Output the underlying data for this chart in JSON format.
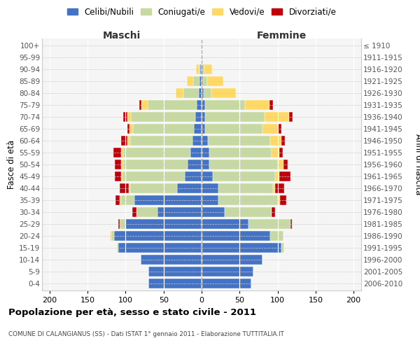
{
  "age_groups": [
    "0-4",
    "5-9",
    "10-14",
    "15-19",
    "20-24",
    "25-29",
    "30-34",
    "35-39",
    "40-44",
    "45-49",
    "50-54",
    "55-59",
    "60-64",
    "65-69",
    "70-74",
    "75-79",
    "80-84",
    "85-89",
    "90-94",
    "95-99",
    "100+"
  ],
  "birth_years": [
    "2006-2010",
    "2001-2005",
    "1996-2000",
    "1991-1995",
    "1986-1990",
    "1981-1985",
    "1976-1980",
    "1971-1975",
    "1966-1970",
    "1961-1965",
    "1956-1960",
    "1951-1955",
    "1946-1950",
    "1941-1945",
    "1936-1940",
    "1931-1935",
    "1926-1930",
    "1921-1925",
    "1916-1920",
    "1911-1915",
    "≤ 1910"
  ],
  "maschi": {
    "celibi": [
      70,
      70,
      80,
      110,
      115,
      100,
      58,
      88,
      32,
      22,
      18,
      15,
      12,
      10,
      8,
      6,
      4,
      3,
      2,
      0,
      1
    ],
    "coniugati": [
      0,
      0,
      0,
      1,
      4,
      8,
      28,
      18,
      62,
      82,
      85,
      88,
      82,
      80,
      85,
      65,
      20,
      8,
      2,
      0,
      0
    ],
    "vedovi": [
      0,
      0,
      0,
      0,
      2,
      0,
      0,
      2,
      2,
      2,
      3,
      3,
      4,
      5,
      5,
      8,
      10,
      8,
      3,
      0,
      0
    ],
    "divorziati": [
      0,
      0,
      0,
      0,
      0,
      2,
      5,
      5,
      12,
      8,
      8,
      10,
      8,
      3,
      5,
      3,
      0,
      0,
      0,
      0,
      0
    ]
  },
  "femmine": {
    "nubili": [
      65,
      68,
      80,
      105,
      90,
      62,
      30,
      22,
      22,
      15,
      10,
      10,
      8,
      5,
      5,
      5,
      3,
      2,
      2,
      0,
      0
    ],
    "coniugate": [
      0,
      0,
      0,
      4,
      18,
      55,
      62,
      78,
      72,
      82,
      90,
      82,
      82,
      75,
      78,
      52,
      10,
      5,
      2,
      0,
      0
    ],
    "vedove": [
      0,
      0,
      0,
      0,
      0,
      0,
      0,
      3,
      3,
      5,
      8,
      10,
      15,
      20,
      32,
      32,
      32,
      22,
      10,
      2,
      0
    ],
    "divorziate": [
      0,
      0,
      0,
      0,
      0,
      2,
      5,
      8,
      12,
      15,
      5,
      5,
      5,
      5,
      5,
      5,
      0,
      0,
      0,
      0,
      0
    ]
  },
  "colors": {
    "celibi": "#4472c4",
    "coniugati": "#c5d9a0",
    "vedovi": "#ffd966",
    "divorziati": "#c0000b"
  },
  "xlim": 210,
  "title": "Popolazione per età, sesso e stato civile - 2011",
  "subtitle": "COMUNE DI CALANGIANUS (SS) - Dati ISTAT 1° gennaio 2011 - Elaborazione TUTTITALIA.IT",
  "ylabel_left": "Fasce di età",
  "ylabel_right": "Anni di nascita",
  "xlabel_maschi": "Maschi",
  "xlabel_femmine": "Femmine",
  "bg_color": "#f5f5f5",
  "legend_labels": [
    "Celibi/Nubili",
    "Coniugati/e",
    "Vedovi/e",
    "Divorziati/e"
  ],
  "xticks": [
    -200,
    -150,
    -100,
    -50,
    0,
    50,
    100,
    150,
    200
  ]
}
